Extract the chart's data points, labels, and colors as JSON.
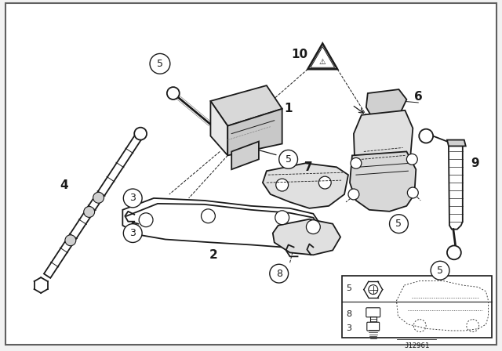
{
  "bg_color": "#f2f2f2",
  "border_color": "#404040",
  "line_color": "#1a1a1a",
  "fill_light": "#e8e8e8",
  "fill_white": "#ffffff",
  "fig_width": 6.4,
  "fig_height": 4.48,
  "dpi": 100,
  "diagram_number": "J12961"
}
